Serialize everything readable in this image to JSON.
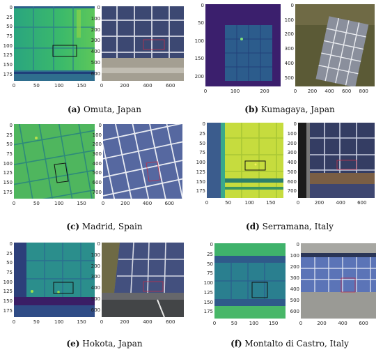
{
  "panels": [
    {
      "id": "a",
      "letter": "(a)",
      "location": "Omuta, Japan",
      "thermal": {
        "yticks": [
          "0",
          "25",
          "50",
          "75",
          "100",
          "125",
          "150",
          "175"
        ],
        "xticks": [
          "0",
          "50",
          "100",
          "150"
        ]
      },
      "rgb": {
        "yticks": [
          "0",
          "100",
          "200",
          "300",
          "400",
          "500",
          "600"
        ],
        "xticks": [
          "0",
          "200",
          "400",
          "600"
        ]
      }
    },
    {
      "id": "b",
      "letter": "(b)",
      "location": "Kumagaya, Japan",
      "thermal": {
        "yticks": [
          "0",
          "50",
          "100",
          "150",
          "200"
        ],
        "xticks": [
          "0",
          "100",
          "200"
        ]
      },
      "rgb": {
        "yticks": [
          "0",
          "100",
          "200",
          "300",
          "400",
          "500"
        ],
        "xticks": [
          "0",
          "200",
          "400",
          "600",
          "800"
        ]
      }
    },
    {
      "id": "c",
      "letter": "(c)",
      "location": "Madrid, Spain",
      "thermal": {
        "yticks": [
          "0",
          "25",
          "50",
          "75",
          "100",
          "125",
          "150",
          "175"
        ],
        "xticks": [
          "0",
          "50",
          "100",
          "150"
        ]
      },
      "rgb": {
        "yticks": [
          "0",
          "100",
          "200",
          "300",
          "400",
          "500",
          "600",
          "700"
        ],
        "xticks": [
          "0",
          "200",
          "400",
          "600"
        ]
      }
    },
    {
      "id": "d",
      "letter": "(d)",
      "location": "Serramana, Italy",
      "thermal": {
        "yticks": [
          "0",
          "25",
          "50",
          "75",
          "100",
          "125",
          "150",
          "175"
        ],
        "xticks": [
          "0",
          "50",
          "100",
          "150"
        ]
      },
      "rgb": {
        "yticks": [
          "0",
          "100",
          "200",
          "300",
          "400",
          "500",
          "600",
          "700"
        ],
        "xticks": [
          "0",
          "200",
          "400",
          "600"
        ]
      }
    },
    {
      "id": "e",
      "letter": "(e)",
      "location": "Hokota, Japan",
      "thermal": {
        "yticks": [
          "0",
          "25",
          "50",
          "75",
          "100",
          "125",
          "150",
          "175"
        ],
        "xticks": [
          "0",
          "50",
          "100",
          "150"
        ]
      },
      "rgb": {
        "yticks": [
          "0",
          "100",
          "200",
          "300",
          "400",
          "500",
          "600"
        ],
        "xticks": [
          "0",
          "200",
          "400",
          "600"
        ]
      }
    },
    {
      "id": "f",
      "letter": "(f)",
      "location": "Montalto di Castro, Italy",
      "thermal": {
        "yticks": [
          "0",
          "25",
          "50",
          "75",
          "100",
          "125",
          "150",
          "175"
        ],
        "xticks": [
          "0",
          "50",
          "100",
          "150"
        ]
      },
      "rgb": {
        "yticks": [
          "0",
          "100",
          "200",
          "300",
          "400",
          "500",
          "600"
        ],
        "xticks": [
          "0",
          "200",
          "400",
          "600"
        ]
      }
    }
  ]
}
